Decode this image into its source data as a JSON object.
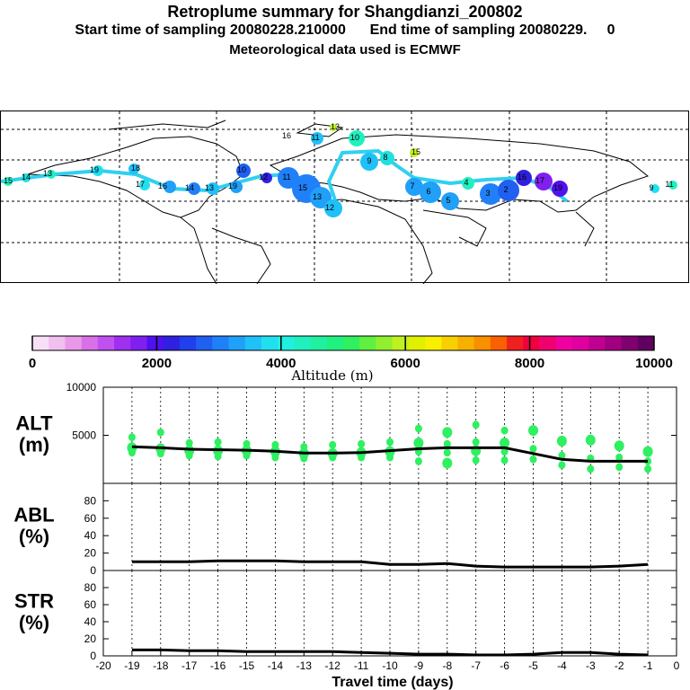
{
  "header": {
    "title": "Retroplume summary for Shangdianzi_200802",
    "sampling_line": "Start time of sampling 20080228.210000      End time of sampling 20080229.     0",
    "met_line": "Meteorological data used is ECMWF"
  },
  "colorbar": {
    "label": "Altitude (m)",
    "ticks": [
      "0",
      "2000",
      "4000",
      "6000",
      "8000",
      "10000"
    ],
    "colors": [
      "#f7dff7",
      "#f0c0f0",
      "#e89ae8",
      "#d870e8",
      "#c050f0",
      "#a030f0",
      "#8020f0",
      "#5010f0",
      "#3020e0",
      "#2040f0",
      "#2060f0",
      "#2080f8",
      "#20a0f8",
      "#20c0f8",
      "#20e0f0",
      "#20f0e0",
      "#20f0c0",
      "#20f0a0",
      "#20f080",
      "#30f060",
      "#60f040",
      "#90f030",
      "#c0f020",
      "#e0f000",
      "#f8f000",
      "#f8d000",
      "#f8b000",
      "#f89000",
      "#f86000",
      "#f02020",
      "#f00040",
      "#f00070",
      "#f000a0",
      "#e000a0",
      "#c00090",
      "#a00080",
      "#800070",
      "#600060"
    ]
  },
  "chart_data": [
    {
      "type": "line",
      "panel": "ALT",
      "ylabel": "ALT\n(m)",
      "ylabel_lines": [
        "ALT",
        "(m)"
      ],
      "ylim": [
        0,
        10000
      ],
      "ytick_labels": [
        "10000",
        "5000"
      ],
      "x": [
        -19,
        -18,
        -17,
        -16,
        -15,
        -14,
        -13,
        -12,
        -11,
        -10,
        -9,
        -8,
        -7,
        -6,
        -5,
        -4,
        -3,
        -2,
        -1
      ],
      "values": [
        3800,
        3700,
        3550,
        3500,
        3450,
        3350,
        3150,
        3150,
        3200,
        3400,
        3600,
        3700,
        3700,
        3700,
        3100,
        2500,
        2300,
        2300,
        2300
      ],
      "scatter": [
        {
          "x": -19,
          "y": 4800
        },
        {
          "x": -19,
          "y": 3700
        },
        {
          "x": -19,
          "y": 3200
        },
        {
          "x": -18,
          "y": 5300
        },
        {
          "x": -18,
          "y": 3600
        },
        {
          "x": -18,
          "y": 3100
        },
        {
          "x": -17,
          "y": 4200
        },
        {
          "x": -17,
          "y": 3400
        },
        {
          "x": -17,
          "y": 2900
        },
        {
          "x": -16,
          "y": 4300
        },
        {
          "x": -16,
          "y": 3400
        },
        {
          "x": -16,
          "y": 2800
        },
        {
          "x": -15,
          "y": 4100
        },
        {
          "x": -15,
          "y": 3400
        },
        {
          "x": -15,
          "y": 2900
        },
        {
          "x": -14,
          "y": 4000
        },
        {
          "x": -14,
          "y": 3300
        },
        {
          "x": -14,
          "y": 2700
        },
        {
          "x": -13,
          "y": 3800
        },
        {
          "x": -13,
          "y": 3100
        },
        {
          "x": -13,
          "y": 2600
        },
        {
          "x": -12,
          "y": 4000
        },
        {
          "x": -12,
          "y": 3100
        },
        {
          "x": -12,
          "y": 2700
        },
        {
          "x": -11,
          "y": 4100
        },
        {
          "x": -11,
          "y": 3200
        },
        {
          "x": -11,
          "y": 2700
        },
        {
          "x": -10,
          "y": 4300
        },
        {
          "x": -10,
          "y": 3300
        },
        {
          "x": -10,
          "y": 2700
        },
        {
          "x": -9,
          "y": 5700
        },
        {
          "x": -9,
          "y": 4200
        },
        {
          "x": -9,
          "y": 3300
        },
        {
          "x": -9,
          "y": 2300
        },
        {
          "x": -8,
          "y": 5300
        },
        {
          "x": -8,
          "y": 4100
        },
        {
          "x": -8,
          "y": 3200
        },
        {
          "x": -8,
          "y": 2100
        },
        {
          "x": -7,
          "y": 6100
        },
        {
          "x": -7,
          "y": 4300
        },
        {
          "x": -7,
          "y": 3400
        },
        {
          "x": -7,
          "y": 2400
        },
        {
          "x": -6,
          "y": 5500
        },
        {
          "x": -6,
          "y": 4200
        },
        {
          "x": -6,
          "y": 3300
        },
        {
          "x": -6,
          "y": 2400
        },
        {
          "x": -5,
          "y": 5500
        },
        {
          "x": -5,
          "y": 3600
        },
        {
          "x": -5,
          "y": 2500
        },
        {
          "x": -4,
          "y": 4400
        },
        {
          "x": -4,
          "y": 2900
        },
        {
          "x": -4,
          "y": 1900
        },
        {
          "x": -3,
          "y": 4500
        },
        {
          "x": -3,
          "y": 2600
        },
        {
          "x": -3,
          "y": 1500
        },
        {
          "x": -2,
          "y": 3900
        },
        {
          "x": -2,
          "y": 2700
        },
        {
          "x": -2,
          "y": 1700
        },
        {
          "x": -1,
          "y": 3300
        },
        {
          "x": -1,
          "y": 2300
        },
        {
          "x": -1,
          "y": 1500
        }
      ]
    },
    {
      "type": "line",
      "panel": "ABL",
      "ylabel": "ABL\n(%)",
      "ylabel_lines": [
        "ABL",
        "(%)"
      ],
      "ylim": [
        0,
        100
      ],
      "ytick_labels": [
        "80",
        "60",
        "40",
        "20",
        "0"
      ],
      "x": [
        -19,
        -18,
        -17,
        -16,
        -15,
        -14,
        -13,
        -12,
        -11,
        -10,
        -9,
        -8,
        -7,
        -6,
        -5,
        -4,
        -3,
        -2,
        -1
      ],
      "values": [
        10,
        10,
        10,
        11,
        11,
        11,
        10,
        10,
        10,
        7,
        7,
        8,
        5,
        4,
        4,
        4,
        4,
        5,
        7
      ]
    },
    {
      "type": "line",
      "panel": "STR",
      "ylabel": "STR\n(%)",
      "ylabel_lines": [
        "STR",
        "(%)"
      ],
      "ylim": [
        0,
        100
      ],
      "ytick_labels": [
        "80",
        "60",
        "40",
        "20",
        "0"
      ],
      "x": [
        -19,
        -18,
        -17,
        -16,
        -15,
        -14,
        -13,
        -12,
        -11,
        -10,
        -9,
        -8,
        -7,
        -6,
        -5,
        -4,
        -3,
        -2,
        -1
      ],
      "values": [
        7,
        7,
        6,
        6,
        5,
        5,
        5,
        5,
        4,
        3,
        2,
        2,
        1,
        1,
        2,
        4,
        4,
        2,
        1
      ]
    }
  ],
  "xaxis": {
    "label": "Travel time (days)",
    "ticks": [
      "-20",
      "-19",
      "-18",
      "-17",
      "-16",
      "-15",
      "-14",
      "-13",
      "-12",
      "-11",
      "-10",
      "-9",
      "-8",
      "-7",
      "-6",
      "-5",
      "-4",
      "-3",
      "-2",
      "-1",
      "0"
    ]
  },
  "map": {
    "plume_labels": [
      "15",
      "14",
      "13",
      "19",
      "18",
      "17",
      "16",
      "14",
      "13",
      "19",
      "10",
      "12",
      "11",
      "15",
      "13",
      "12",
      "11",
      "10",
      "9",
      "8",
      "7",
      "6",
      "5",
      "4",
      "3",
      "2",
      "16",
      "17",
      "19",
      "9",
      "11",
      "13",
      "15",
      "16"
    ]
  }
}
